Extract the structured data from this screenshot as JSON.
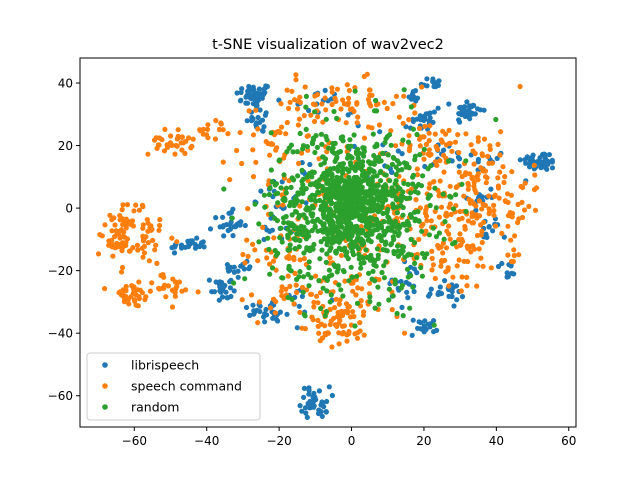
{
  "chart_data": {
    "type": "scatter",
    "title": "t-SNE visualization of wav2vec2",
    "xlabel": "",
    "ylabel": "",
    "xlim": [
      -75,
      62
    ],
    "ylim": [
      -70,
      48
    ],
    "xticks": [
      -60,
      -40,
      -20,
      0,
      20,
      40,
      60
    ],
    "yticks": [
      -60,
      -40,
      -20,
      0,
      20,
      40
    ],
    "xtick_labels": [
      "−60",
      "−40",
      "−20",
      "0",
      "20",
      "40",
      "60"
    ],
    "ytick_labels": [
      "−60",
      "−40",
      "−20",
      "0",
      "20",
      "40"
    ],
    "grid": false,
    "legend_placement": "lower-left",
    "series": [
      {
        "name": "librispeech",
        "color": "#1f77b4",
        "clusters": [
          {
            "cx": -27,
            "cy": 36,
            "sx": 2.5,
            "sy": 2,
            "n": 45
          },
          {
            "cx": -25,
            "cy": 28,
            "sx": 2,
            "sy": 2,
            "n": 18
          },
          {
            "cx": 22,
            "cy": 40,
            "sx": 1.5,
            "sy": 1,
            "n": 14
          },
          {
            "cx": 17,
            "cy": 36,
            "sx": 1,
            "sy": 1,
            "n": 8
          },
          {
            "cx": 32,
            "cy": 31,
            "sx": 2,
            "sy": 2,
            "n": 35
          },
          {
            "cx": 20,
            "cy": 28,
            "sx": 2,
            "sy": 2,
            "n": 22
          },
          {
            "cx": 52,
            "cy": 15,
            "sx": 2.5,
            "sy": 1.5,
            "n": 45
          },
          {
            "cx": 38,
            "cy": 15,
            "sx": 2,
            "sy": 2,
            "n": 10
          },
          {
            "cx": -45,
            "cy": -12,
            "sx": 2.5,
            "sy": 1,
            "n": 25
          },
          {
            "cx": -34,
            "cy": -5,
            "sx": 2,
            "sy": 2,
            "n": 25
          },
          {
            "cx": -36,
            "cy": -26,
            "sx": 1.5,
            "sy": 2.5,
            "n": 25
          },
          {
            "cx": -30,
            "cy": -19,
            "sx": 2,
            "sy": 2,
            "n": 15
          },
          {
            "cx": -22,
            "cy": -34,
            "sx": 2,
            "sy": 1.5,
            "n": 18
          },
          {
            "cx": -27,
            "cy": -32,
            "sx": 1.5,
            "sy": 1,
            "n": 8
          },
          {
            "cx": -10,
            "cy": -62,
            "sx": 2,
            "sy": 2.5,
            "n": 40
          },
          {
            "cx": 20,
            "cy": -38,
            "sx": 2,
            "sy": 1.5,
            "n": 18
          },
          {
            "cx": 26,
            "cy": -27,
            "sx": 2.5,
            "sy": 1.5,
            "n": 22
          },
          {
            "cx": 43,
            "cy": -20,
            "sx": 2,
            "sy": 2,
            "n": 10
          },
          {
            "cx": 38,
            "cy": -7,
            "sx": 1.5,
            "sy": 2,
            "n": 12
          },
          {
            "cx": 36,
            "cy": 4,
            "sx": 2,
            "sy": 2,
            "n": 10
          },
          {
            "cx": -8,
            "cy": 34,
            "sx": 3,
            "sy": 2,
            "n": 12
          },
          {
            "cx": -18,
            "cy": 8,
            "sx": 3,
            "sy": 3,
            "n": 10
          },
          {
            "cx": -20,
            "cy": -2,
            "sx": 4,
            "sy": 5,
            "n": 25
          },
          {
            "cx": 15,
            "cy": -25,
            "sx": 4,
            "sy": 4,
            "n": 20
          },
          {
            "cx": 27,
            "cy": 16,
            "sx": 3,
            "sy": 3,
            "n": 14
          },
          {
            "cx": -15,
            "cy": -30,
            "sx": 5,
            "sy": 3,
            "n": 15
          },
          {
            "cx": 10,
            "cy": 20,
            "sx": 6,
            "sy": 6,
            "n": 20
          }
        ]
      },
      {
        "name": "speech command",
        "color": "#ff7f0e",
        "clusters": [
          {
            "cx": -50,
            "cy": 21,
            "sx": 3,
            "sy": 2,
            "n": 35
          },
          {
            "cx": -38,
            "cy": 25,
            "sx": 2.5,
            "sy": 1.5,
            "n": 14
          },
          {
            "cx": -62,
            "cy": -5,
            "sx": 3,
            "sy": 4,
            "n": 45
          },
          {
            "cx": -57,
            "cy": -10,
            "sx": 3,
            "sy": 4,
            "n": 35
          },
          {
            "cx": -66,
            "cy": -13,
            "sx": 2,
            "sy": 2,
            "n": 20
          },
          {
            "cx": -61,
            "cy": -28,
            "sx": 3,
            "sy": 2,
            "n": 35
          },
          {
            "cx": -50,
            "cy": -25,
            "sx": 4,
            "sy": 2,
            "n": 25
          },
          {
            "cx": -5,
            "cy": 33,
            "sx": 10,
            "sy": 4,
            "n": 70
          },
          {
            "cx": 20,
            "cy": 22,
            "sx": 6,
            "sy": 4,
            "n": 35
          },
          {
            "cx": 35,
            "cy": 8,
            "sx": 7,
            "sy": 9,
            "n": 130
          },
          {
            "cx": 28,
            "cy": -12,
            "sx": 6,
            "sy": 8,
            "n": 80
          },
          {
            "cx": -3,
            "cy": -38,
            "sx": 4,
            "sy": 3,
            "n": 50
          },
          {
            "cx": -5,
            "cy": -28,
            "sx": 10,
            "sy": 4,
            "n": 55
          },
          {
            "cx": -20,
            "cy": -15,
            "sx": 5,
            "sy": 6,
            "n": 35
          },
          {
            "cx": -22,
            "cy": 20,
            "sx": 6,
            "sy": 5,
            "n": 25
          },
          {
            "cx": 45,
            "cy": -15,
            "sx": 1,
            "sy": 1,
            "n": 6
          },
          {
            "cx": 46,
            "cy": -2,
            "sx": 1.5,
            "sy": 3,
            "n": 12
          },
          {
            "cx": 2,
            "cy": 0,
            "sx": 16,
            "sy": 15,
            "n": 180
          }
        ]
      },
      {
        "name": "random",
        "color": "#2ca02c",
        "clusters": [
          {
            "cx": 0,
            "cy": 0,
            "sx": 11,
            "sy": 13,
            "n": 900
          },
          {
            "cx": 0,
            "cy": 2,
            "sx": 5,
            "sy": 6,
            "n": 250
          }
        ]
      }
    ]
  }
}
